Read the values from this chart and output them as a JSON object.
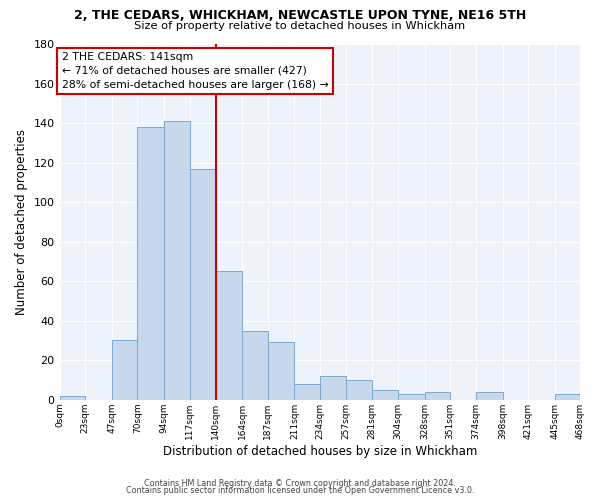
{
  "title": "2, THE CEDARS, WHICKHAM, NEWCASTLE UPON TYNE, NE16 5TH",
  "subtitle": "Size of property relative to detached houses in Whickham",
  "xlabel": "Distribution of detached houses by size in Whickham",
  "ylabel": "Number of detached properties",
  "bar_color": "#c8d8ec",
  "bar_edge_color": "#7baacf",
  "bg_color": "#ffffff",
  "plot_bg_color": "#eef2fb",
  "grid_color": "#ffffff",
  "bin_edges": [
    0,
    23,
    47,
    70,
    94,
    117,
    140,
    164,
    187,
    211,
    234,
    257,
    281,
    304,
    328,
    351,
    374,
    398,
    421,
    445,
    468
  ],
  "bin_labels": [
    "0sqm",
    "23sqm",
    "47sqm",
    "70sqm",
    "94sqm",
    "117sqm",
    "140sqm",
    "164sqm",
    "187sqm",
    "211sqm",
    "234sqm",
    "257sqm",
    "281sqm",
    "304sqm",
    "328sqm",
    "351sqm",
    "374sqm",
    "398sqm",
    "421sqm",
    "445sqm",
    "468sqm"
  ],
  "counts": [
    2,
    0,
    30,
    138,
    141,
    117,
    65,
    35,
    29,
    8,
    12,
    10,
    5,
    3,
    4,
    0,
    4,
    0,
    0,
    3
  ],
  "vline_x": 141,
  "vline_color": "#cc0000",
  "annotation_title": "2 THE CEDARS: 141sqm",
  "annotation_line1": "← 71% of detached houses are smaller (427)",
  "annotation_line2": "28% of semi-detached houses are larger (168) →",
  "annotation_box_color": "#cc0000",
  "ylim": [
    0,
    180
  ],
  "yticks": [
    0,
    20,
    40,
    60,
    80,
    100,
    120,
    140,
    160,
    180
  ],
  "footer1": "Contains HM Land Registry data © Crown copyright and database right 2024.",
  "footer2": "Contains public sector information licensed under the Open Government Licence v3.0."
}
